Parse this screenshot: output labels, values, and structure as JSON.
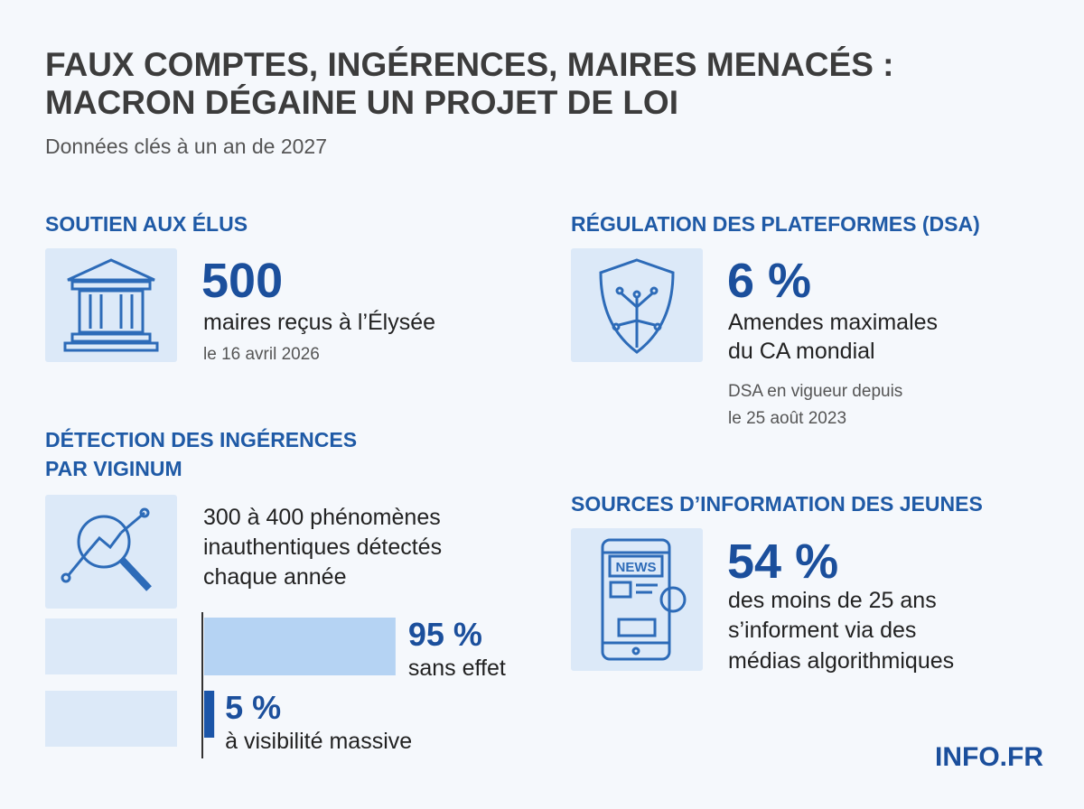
{
  "header": {
    "title_lines": [
      "FAUX COMPTES, INGÉRENCES, MAIRES MENACÉS :",
      "MACRON DÉGAINE UN PROJET DE LOI"
    ],
    "subtitle": "Données clés à un an de 2027"
  },
  "elus": {
    "heading": "SOUTIEN AUX ÉLUS",
    "figure": "500",
    "lines": [
      "maires reçus à l’Élysée"
    ],
    "note": [
      "le 16 avril 2026"
    ]
  },
  "dsa": {
    "heading": "RÉGULATION DES PLATEFORMES (DSA)",
    "figure": "6 %",
    "lines": [
      "Amendes maximales",
      "du CA mondial"
    ],
    "note": [
      "DSA en vigueur depuis",
      "le 25 août 2023"
    ]
  },
  "viginum": {
    "heading": [
      "DÉTECTION DES INGÉRENCES",
      "PAR VIGINUM"
    ],
    "lines": [
      "300 à 400 phénomènes",
      "inauthentiques détectés",
      "chaque année"
    ],
    "bars": {
      "values": [
        95,
        5
      ],
      "value_labels": [
        "95 %",
        "5 %"
      ],
      "captions": [
        "sans effet",
        "à visibilité massive"
      ],
      "colors": [
        "#b5d3f3",
        "#1b55a8"
      ]
    }
  },
  "jeunes": {
    "heading": "SOURCES D’INFORMATION DES JEUNES",
    "figure": "54 %",
    "lines": [
      "des moins de 25 ans",
      "s’informent via des",
      "médias algorithmiques"
    ],
    "icon_text": "NEWS"
  },
  "footer": {
    "brand": "INFO.FR"
  }
}
